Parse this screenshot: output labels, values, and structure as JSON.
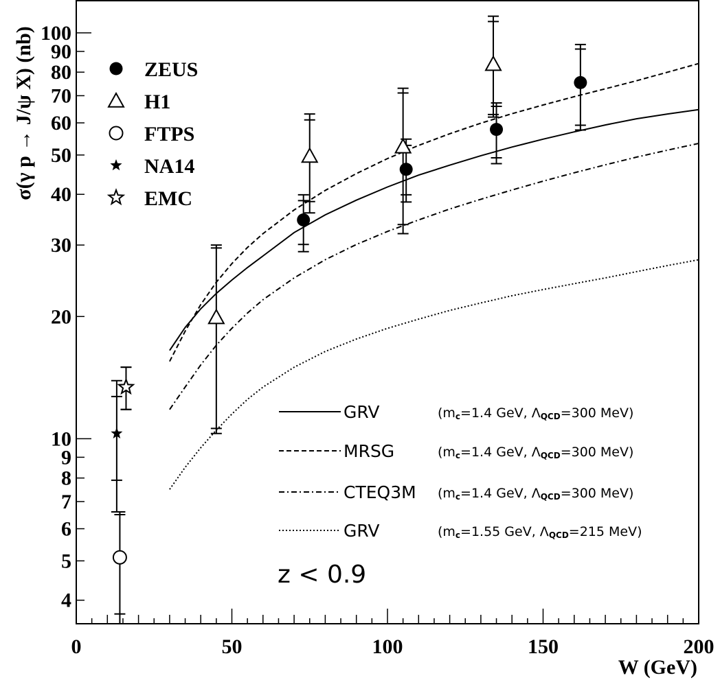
{
  "chart_data": {
    "type": "scatter",
    "xlabel": "W (GeV)",
    "ylabel": "σ(γ p → J/ψ X)  (nb)",
    "xlim": [
      0,
      200
    ],
    "ylim": [
      3.5,
      120
    ],
    "yscale": "log",
    "grid": false,
    "legend_position": "top-left",
    "x_ticks": [
      {
        "value": 0,
        "label": "0"
      },
      {
        "value": 50,
        "label": "50"
      },
      {
        "value": 100,
        "label": "100"
      },
      {
        "value": 150,
        "label": "150"
      },
      {
        "value": 200,
        "label": "200"
      }
    ],
    "y_ticks": [
      {
        "value": 4,
        "label": "4"
      },
      {
        "value": 5,
        "label": "5"
      },
      {
        "value": 6,
        "label": "6"
      },
      {
        "value": 7,
        "label": "7"
      },
      {
        "value": 8,
        "label": "8"
      },
      {
        "value": 9,
        "label": "9"
      },
      {
        "value": 10,
        "label": "10"
      },
      {
        "value": 20,
        "label": "20"
      },
      {
        "value": 30,
        "label": "30"
      },
      {
        "value": 40,
        "label": "40"
      },
      {
        "value": 50,
        "label": "50"
      },
      {
        "value": 60,
        "label": "60"
      },
      {
        "value": 70,
        "label": "70"
      },
      {
        "value": 80,
        "label": "80"
      },
      {
        "value": 90,
        "label": "90"
      },
      {
        "value": 100,
        "label": "100"
      }
    ],
    "data_series": [
      {
        "name": "ZEUS",
        "marker": "filled-circle",
        "points": [
          {
            "x": 73,
            "y": 34.6,
            "lo_stat": 30.1,
            "hi_stat": 38.6,
            "lo_tot": 28.9,
            "hi_tot": 39.9
          },
          {
            "x": 106,
            "y": 46.1,
            "lo_stat": 39.9,
            "hi_stat": 52.8,
            "lo_tot": 38.3,
            "hi_tot": 54.7
          },
          {
            "x": 135,
            "y": 57.8,
            "lo_stat": 49.2,
            "hi_stat": 65.9,
            "lo_tot": 47.6,
            "hi_tot": 67.2
          },
          {
            "x": 162,
            "y": 75.4,
            "lo_stat": 59.2,
            "hi_stat": 91.2,
            "lo_tot": 57.6,
            "hi_tot": 93.6
          }
        ]
      },
      {
        "name": "H1",
        "marker": "open-triangle",
        "points": [
          {
            "x": 45,
            "y": 19.9,
            "lo_stat": 10.6,
            "hi_stat": 29.5,
            "lo_tot": 10.3,
            "hi_tot": 30.0
          },
          {
            "x": 75,
            "y": 49.7,
            "lo_stat": 38.4,
            "hi_stat": 61.0,
            "lo_tot": 36.0,
            "hi_tot": 63.1
          },
          {
            "x": 105,
            "y": 52.4,
            "lo_stat": 33.7,
            "hi_stat": 71.1,
            "lo_tot": 32.0,
            "hi_tot": 73.0
          },
          {
            "x": 134,
            "y": 83.7,
            "lo_stat": 62.9,
            "hi_stat": 106.6,
            "lo_tot": 62.0,
            "hi_tot": 109.9
          }
        ]
      },
      {
        "name": "FTPS",
        "marker": "open-circle",
        "points": [
          {
            "x": 14,
            "y": 5.1,
            "lo_stat": 3.7,
            "hi_stat": 6.5,
            "lo_tot": 3.5,
            "hi_tot": 6.6
          }
        ]
      },
      {
        "name": "NA14",
        "marker": "filled-star",
        "points": [
          {
            "x": 13,
            "y": 10.3,
            "lo_stat": 7.9,
            "hi_stat": 12.7,
            "lo_tot": 6.6,
            "hi_tot": 13.9
          }
        ]
      },
      {
        "name": "EMC",
        "marker": "open-star",
        "points": [
          {
            "x": 16,
            "y": 13.4,
            "lo_stat": 11.8,
            "hi_stat": 15.0,
            "lo_tot": 11.8,
            "hi_tot": 15.0
          }
        ]
      }
    ],
    "curves": [
      {
        "name": "GRV",
        "params": {
          "mc": "1.4",
          "mc_unit": "GeV",
          "lambda": "300",
          "lambda_unit": "MeV"
        },
        "dash": "solid",
        "x": [
          30,
          35,
          40,
          45,
          50,
          55,
          60,
          70,
          80,
          90,
          100,
          110,
          120,
          130,
          140,
          150,
          160,
          170,
          180,
          190,
          200
        ],
        "y": [
          16.5,
          18.8,
          20.9,
          22.8,
          24.6,
          26.4,
          28.2,
          32.2,
          35.6,
          38.7,
          41.7,
          44.6,
          47.2,
          49.8,
          52.3,
          54.7,
          57.0,
          59.3,
          61.4,
          63.1,
          64.7
        ]
      },
      {
        "name": "MRSG",
        "params": {
          "mc": "1.4",
          "mc_unit": "GeV",
          "lambda": "300",
          "lambda_unit": "MeV"
        },
        "dash": "dashed",
        "x": [
          30,
          35,
          40,
          45,
          50,
          55,
          60,
          70,
          80,
          90,
          100,
          110,
          120,
          130,
          140,
          150,
          160,
          170,
          180,
          190,
          200
        ],
        "y": [
          15.5,
          18.4,
          21.4,
          24.3,
          27.0,
          29.6,
          32.0,
          36.6,
          40.9,
          45.0,
          49.0,
          52.8,
          56.4,
          59.9,
          63.2,
          66.4,
          69.6,
          72.8,
          76.2,
          80.0,
          84.0
        ]
      },
      {
        "name": "CTEQ3M",
        "params": {
          "mc": "1.4",
          "mc_unit": "GeV",
          "lambda": "300",
          "lambda_unit": "MeV"
        },
        "dash": "dashdot",
        "x": [
          30,
          35,
          40,
          45,
          50,
          55,
          60,
          70,
          80,
          90,
          100,
          110,
          120,
          130,
          140,
          150,
          160,
          170,
          180,
          190,
          200
        ],
        "y": [
          11.8,
          13.4,
          15.2,
          17.0,
          18.7,
          20.4,
          22.0,
          24.9,
          27.6,
          30.1,
          32.4,
          34.6,
          36.8,
          38.9,
          41.0,
          43.1,
          45.2,
          47.3,
          49.4,
          51.4,
          53.4
        ]
      },
      {
        "name": "GRV",
        "params": {
          "mc": "1.55",
          "mc_unit": "GeV",
          "lambda": "215",
          "lambda_unit": "MeV"
        },
        "dash": "dotted",
        "x": [
          30,
          35,
          40,
          45,
          50,
          55,
          60,
          70,
          80,
          90,
          100,
          110,
          120,
          130,
          140,
          150,
          160,
          170,
          180,
          190,
          200
        ],
        "y": [
          7.5,
          8.5,
          9.5,
          10.5,
          11.5,
          12.5,
          13.4,
          15.0,
          16.4,
          17.6,
          18.7,
          19.7,
          20.7,
          21.6,
          22.5,
          23.3,
          24.1,
          24.9,
          25.8,
          26.7,
          27.6
        ]
      }
    ],
    "annotation": "z < 0.9"
  }
}
